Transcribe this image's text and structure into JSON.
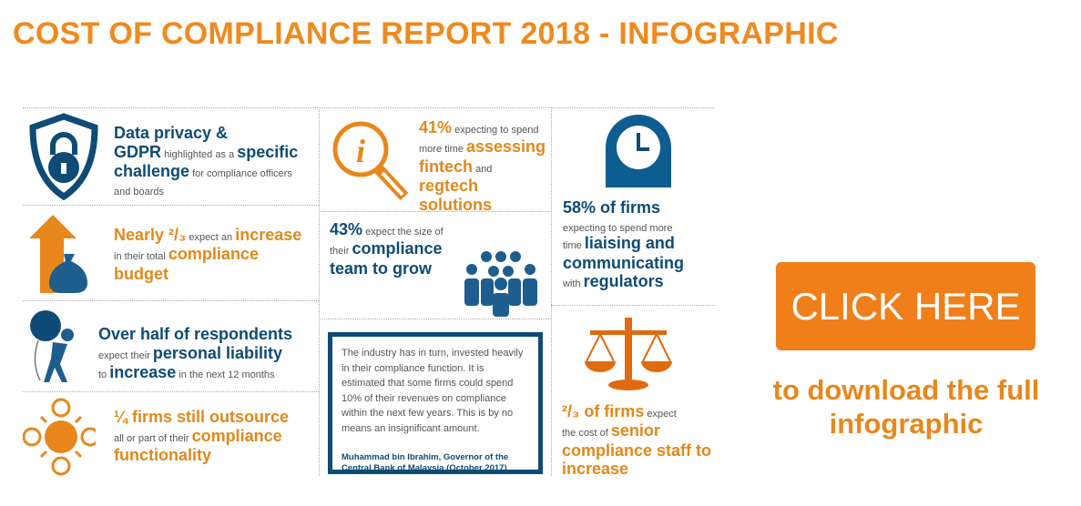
{
  "title": "COST OF COMPLIANCE REPORT 2018 - INFOGRAPHIC",
  "items": {
    "gdpr": {
      "a": "Data privacy &",
      "b": "GDPR",
      "c": " highlighted as a ",
      "d": "specific",
      "e": "challenge",
      "f": " for compliance officers",
      "g": "and boards"
    },
    "budget": {
      "a": "Nearly ²/₃",
      "b": " expect an ",
      "c": "increase",
      "d": "in their total ",
      "e": "compliance",
      "f": "budget"
    },
    "liability": {
      "a": "Over half of respondents",
      "b": "expect their ",
      "c": "personal liability",
      "d": "to ",
      "e": "increase",
      "f": " in the next 12 months"
    },
    "outsource": {
      "a": "¼ firms still outsource",
      "b": "all or part of their ",
      "c": "compliance",
      "d": "functionality"
    },
    "fintech": {
      "a": "41%",
      "b": " expecting to spend",
      "c": "more time ",
      "d": "assessing",
      "e": "fintech",
      "f": " and",
      "g": "regtech",
      "h": "solutions"
    },
    "team": {
      "a": "43%",
      "b": " expect the size of",
      "c": "their ",
      "d": "compliance",
      "e": "team to grow"
    },
    "regulators": {
      "a": "58% of firms",
      "b": "expecting to spend more",
      "c": "time ",
      "d": "liaising and",
      "e": "communicating",
      "f": "with ",
      "g": "regulators"
    },
    "senior": {
      "a": "²/₃ of firms",
      "b": " expect",
      "c": "the cost of ",
      "d": "senior",
      "e": "compliance staff to",
      "f": "increase"
    }
  },
  "quote": {
    "text": "The industry has in turn, invested heavily in their compliance function. It is estimated that some firms could spend 10% of their revenues on compliance within the next few years. This is by no means an insignificant amount.",
    "author": "Muhammad bin Ibrahim, Governor of the Central Bank of Malaysia (October 2017)"
  },
  "cta": {
    "button": "CLICK HERE",
    "text": "to download the full infographic"
  },
  "colors": {
    "orange": "#ef8a1e",
    "blue": "#0e4b75",
    "button": "#f07f1a"
  }
}
